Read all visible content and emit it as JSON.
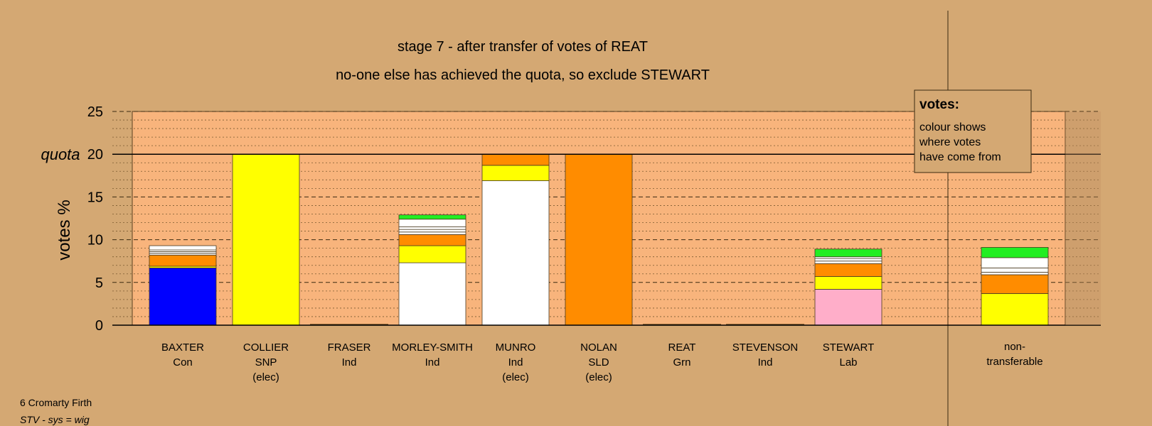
{
  "colors": {
    "background": "#d4a873",
    "plot_area": "#f8b47c",
    "Con": "#0000ff",
    "SNP": "#ffff00",
    "SLD": "#ff8c00",
    "Grn": "#22ee22",
    "Lab": "#ffaec9",
    "Ind": "#ffffff"
  },
  "chart_data": {
    "type": "bar",
    "stacked": true,
    "title": "stage 7 - after transfer of votes of REAT",
    "subtitle": "no-one else has achieved the quota, so exclude STEWART",
    "ylabel": "votes %",
    "ylim": [
      0,
      25
    ],
    "yticks": [
      "0",
      "5",
      "10",
      "15",
      "20",
      "25"
    ],
    "quota": 20,
    "quota_label": "quota",
    "grid": "dashed major every 5, dotted minor every 1",
    "legend": {
      "placement": "top-right",
      "title": "votes:",
      "lines": [
        "colour shows",
        "where votes",
        "have come from"
      ]
    },
    "candidates": [
      {
        "name": "BAXTER",
        "party": "Con",
        "elec": "",
        "segments": [
          {
            "color": "#0000ff",
            "value": 6.7
          },
          {
            "color": "#ffff00",
            "value": 0.2
          },
          {
            "color": "#ff8c00",
            "value": 1.3
          },
          {
            "color": "#ffffff",
            "value": 0.2
          },
          {
            "color": "#ffffff",
            "value": 0.2
          },
          {
            "color": "#ffffff",
            "value": 0.2
          },
          {
            "color": "#ffffff",
            "value": 0.5
          }
        ]
      },
      {
        "name": "COLLIER",
        "party": "SNP",
        "elec": "(elec)",
        "segments": [
          {
            "color": "#ffff00",
            "value": 20
          }
        ]
      },
      {
        "name": "FRASER",
        "party": "Ind",
        "elec": "",
        "segments": []
      },
      {
        "name": "MORLEY-SMITH",
        "party": "Ind",
        "elec": "",
        "segments": [
          {
            "color": "#ffffff",
            "value": 7.3
          },
          {
            "color": "#ffff00",
            "value": 2
          },
          {
            "color": "#ff8c00",
            "value": 1.3
          },
          {
            "color": "#ffffff",
            "value": 0.3
          },
          {
            "color": "#ffffff",
            "value": 0.3
          },
          {
            "color": "#ffffff",
            "value": 0.3
          },
          {
            "color": "#ffffff",
            "value": 0.9
          },
          {
            "color": "#22ee22",
            "value": 0.5
          }
        ]
      },
      {
        "name": "MUNRO",
        "party": "Ind",
        "elec": "(elec)",
        "segments": [
          {
            "color": "#ffffff",
            "value": 16.9
          },
          {
            "color": "#ffff00",
            "value": 1.8
          },
          {
            "color": "#ff8c00",
            "value": 1.3
          }
        ]
      },
      {
        "name": "NOLAN",
        "party": "SLD",
        "elec": "(elec)",
        "segments": [
          {
            "color": "#ff8c00",
            "value": 20
          }
        ]
      },
      {
        "name": "REAT",
        "party": "Grn",
        "elec": "",
        "segments": []
      },
      {
        "name": "STEVENSON",
        "party": "Ind",
        "elec": "",
        "segments": []
      },
      {
        "name": "STEWART",
        "party": "Lab",
        "elec": "",
        "segments": [
          {
            "color": "#ffaec9",
            "value": 4.2
          },
          {
            "color": "#ffff00",
            "value": 1.5
          },
          {
            "color": "#ff8c00",
            "value": 1.5
          },
          {
            "color": "#ffffff",
            "value": 0.3
          },
          {
            "color": "#ffffff",
            "value": 0.3
          },
          {
            "color": "#ffffff",
            "value": 0.2
          },
          {
            "color": "#22ee22",
            "value": 0.9
          }
        ]
      }
    ],
    "nontransferable": {
      "label_lines": [
        "non-",
        "transferable"
      ],
      "segments": [
        {
          "color": "#ffff00",
          "value": 3.7
        },
        {
          "color": "#ff8c00",
          "value": 2.2
        },
        {
          "color": "#ffffff",
          "value": 0.3
        },
        {
          "color": "#ffffff",
          "value": 0.5
        },
        {
          "color": "#ffffff",
          "value": 1.2
        },
        {
          "color": "#22ee22",
          "value": 1.2
        }
      ]
    }
  },
  "footer": {
    "line1": "6 Cromarty Firth",
    "line2": "STV - sys = wig"
  }
}
